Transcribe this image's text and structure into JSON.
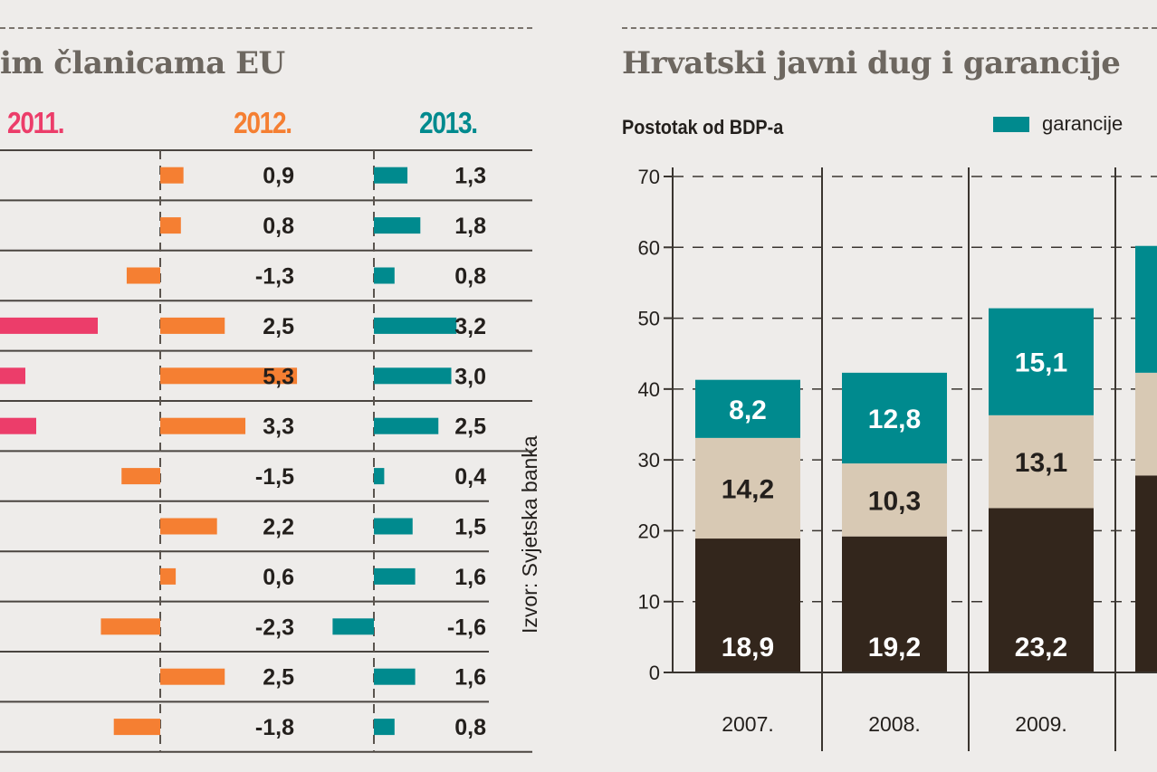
{
  "chart_data": [
    {
      "type": "bar",
      "orientation": "horizontal",
      "title": "im članicama EU",
      "grid": false,
      "series": [
        {
          "name": "2011.",
          "color": "#ec3d6a",
          "values": [
            null,
            null,
            null,
            null,
            null,
            null,
            null,
            null,
            null,
            null,
            null,
            null
          ]
        },
        {
          "name": "2012.",
          "color": "#f57f32",
          "values": [
            0.9,
            0.8,
            -1.3,
            2.5,
            5.3,
            3.3,
            -1.5,
            2.2,
            0.6,
            -2.3,
            2.5,
            -1.8
          ],
          "labels": [
            "0,9",
            "0,8",
            "-1,3",
            "2,5",
            "5,3",
            "3,3",
            "-1,5",
            "2,2",
            "0,6",
            "-2,3",
            "2,5",
            "-1,8"
          ]
        },
        {
          "name": "2013.",
          "color": "#008a8e",
          "values": [
            1.3,
            1.8,
            0.8,
            3.2,
            3.0,
            2.5,
            0.4,
            1.5,
            1.6,
            -1.6,
            1.6,
            0.8
          ],
          "labels": [
            "1,3",
            "1,8",
            "0,8",
            "3,2",
            "3,0",
            "2,5",
            "0,4",
            "1,5",
            "1,6",
            "-1,6",
            "1,6",
            "0,8"
          ]
        }
      ],
      "source": "Izvor: Svjetska banka"
    },
    {
      "type": "bar",
      "stacked": true,
      "title": "Hrvatski javni dug i garancije",
      "ylabel": "Postotak od BDP-a",
      "ylim": [
        0,
        70
      ],
      "yticks": [
        "0",
        "10",
        "20",
        "30",
        "40",
        "50",
        "60",
        "70"
      ],
      "grid": true,
      "legend_placement": "top-right",
      "categories": [
        "2007.",
        "2008.",
        "2009.",
        ""
      ],
      "series": [
        {
          "color": "#33261c",
          "values": [
            18.9,
            19.2,
            23.2,
            27.8
          ],
          "labels": [
            "18,9",
            "19,2",
            "23,2",
            ""
          ]
        },
        {
          "color": "#d8c9b4",
          "values": [
            14.2,
            10.3,
            13.1,
            14.5
          ],
          "labels": [
            "14,2",
            "10,3",
            "13,1",
            ""
          ]
        },
        {
          "name": "garancije",
          "color": "#008a8e",
          "values": [
            8.2,
            12.8,
            15.1,
            17.9
          ],
          "labels": [
            "8,2",
            "12,8",
            "15,1",
            ""
          ]
        }
      ]
    }
  ]
}
